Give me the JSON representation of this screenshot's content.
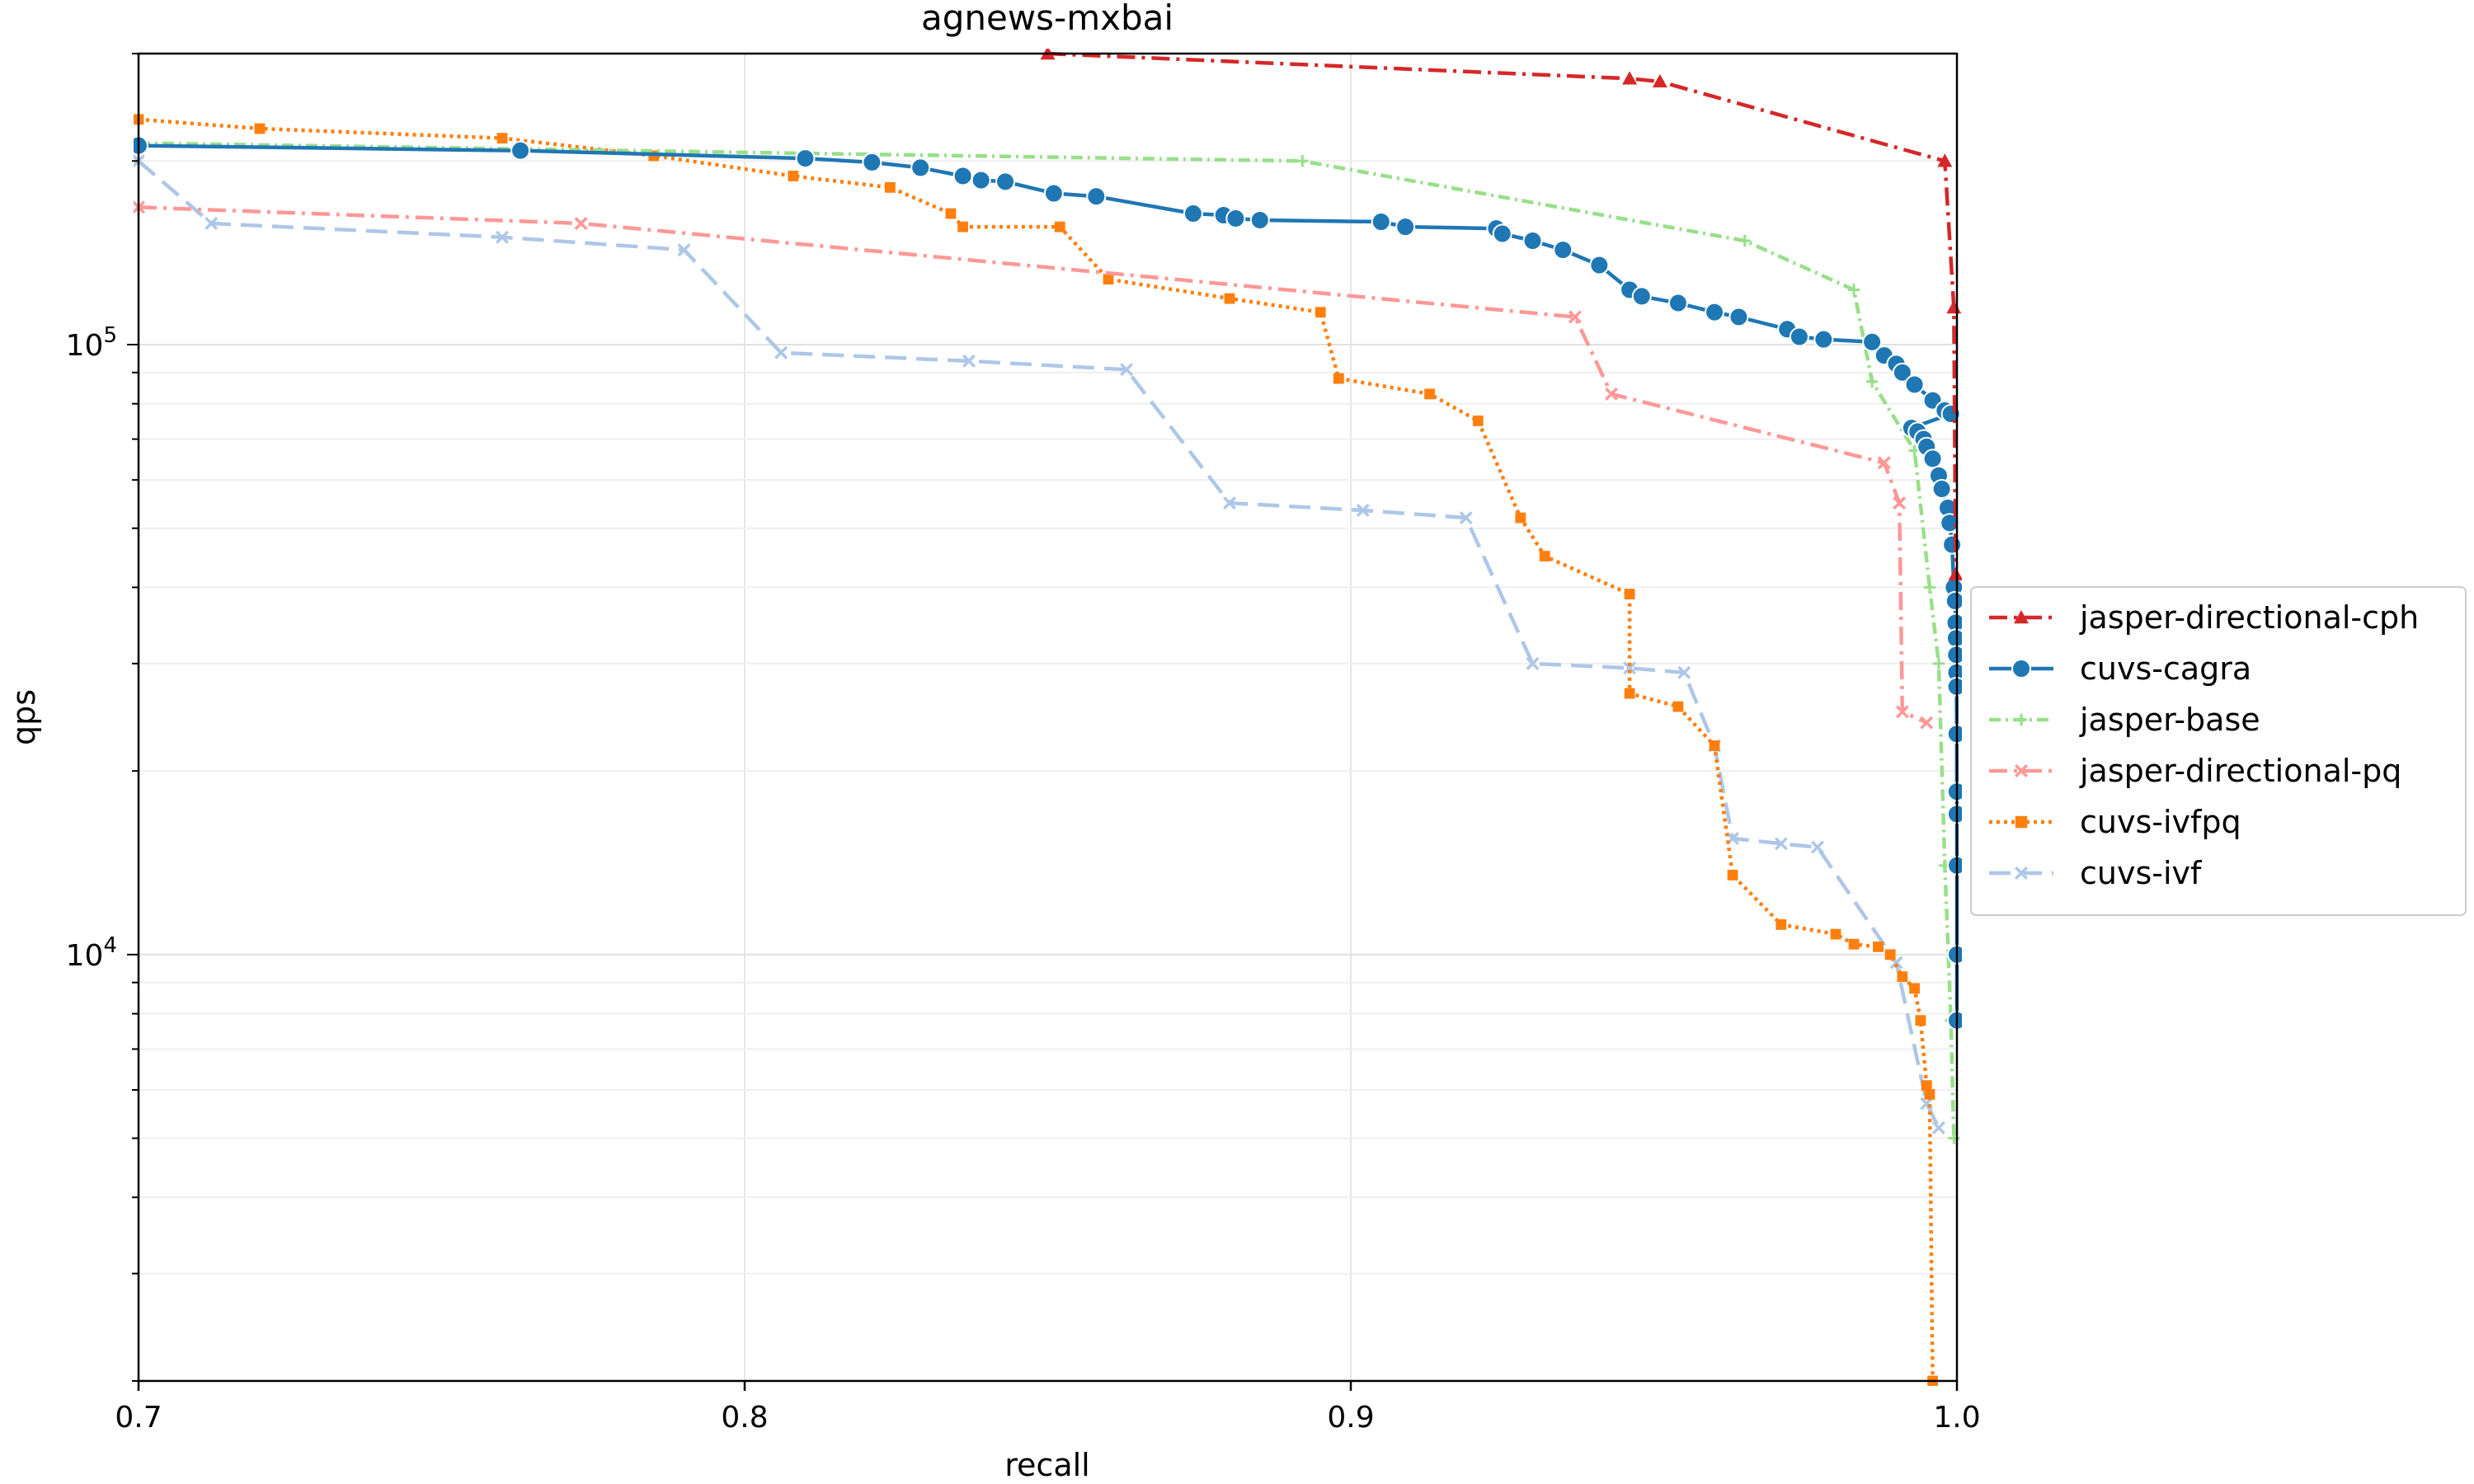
{
  "chart_data": {
    "type": "line",
    "title": "agnews-mxbai",
    "xlabel": "recall",
    "ylabel": "qps",
    "xlim": [
      0.7,
      1.0
    ],
    "ylim": [
      2000,
      300000
    ],
    "yscale": "log",
    "grid": true,
    "legend": "right",
    "x_ticks": [
      {
        "value": 0.7,
        "label": "0.7"
      },
      {
        "value": 0.8,
        "label": "0.8"
      },
      {
        "value": 0.9,
        "label": "0.9"
      },
      {
        "value": 1.0,
        "label": "1.0"
      }
    ],
    "y_ticks": [
      {
        "value": 10000,
        "base": "10",
        "exp": "4"
      },
      {
        "value": 100000,
        "base": "10",
        "exp": "5"
      }
    ],
    "series": [
      {
        "name": "jasper-directional-cph",
        "color": "#d62728",
        "dash": "22 8 4 8",
        "marker": "triangle",
        "points": [
          [
            0.85,
            300000
          ],
          [
            0.946,
            273000
          ],
          [
            0.951,
            270000
          ],
          [
            0.998,
            200000
          ],
          [
            0.9995,
            115000
          ],
          [
            0.9998,
            42000
          ]
        ]
      },
      {
        "name": "cuvs-cagra",
        "color": "#1f77b4",
        "dash": "",
        "marker": "circle",
        "points": [
          [
            0.7,
            212000
          ],
          [
            0.763,
            208000
          ],
          [
            0.81,
            202000
          ],
          [
            0.821,
            199000
          ],
          [
            0.829,
            195000
          ],
          [
            0.836,
            189000
          ],
          [
            0.839,
            186000
          ],
          [
            0.843,
            185000
          ],
          [
            0.851,
            177000
          ],
          [
            0.858,
            175000
          ],
          [
            0.874,
            164000
          ],
          [
            0.879,
            163000
          ],
          [
            0.881,
            161000
          ],
          [
            0.885,
            160000
          ],
          [
            0.905,
            159000
          ],
          [
            0.909,
            156000
          ],
          [
            0.924,
            155000
          ],
          [
            0.925,
            152000
          ],
          [
            0.93,
            148000
          ],
          [
            0.935,
            143000
          ],
          [
            0.941,
            135000
          ],
          [
            0.946,
            123000
          ],
          [
            0.948,
            120000
          ],
          [
            0.954,
            117000
          ],
          [
            0.96,
            113000
          ],
          [
            0.964,
            111000
          ],
          [
            0.972,
            106000
          ],
          [
            0.974,
            103000
          ],
          [
            0.978,
            102000
          ],
          [
            0.986,
            101000
          ],
          [
            0.988,
            96000
          ],
          [
            0.99,
            93000
          ],
          [
            0.991,
            90000
          ],
          [
            0.993,
            86000
          ],
          [
            0.996,
            81000
          ],
          [
            0.998,
            78000
          ],
          [
            0.999,
            77000
          ],
          [
            0.9925,
            73000
          ],
          [
            0.9935,
            72000
          ],
          [
            0.9945,
            70000
          ],
          [
            0.995,
            68000
          ],
          [
            0.996,
            65000
          ],
          [
            0.997,
            61000
          ],
          [
            0.9975,
            58000
          ],
          [
            0.9985,
            54000
          ],
          [
            0.9988,
            51000
          ],
          [
            0.9992,
            47000
          ],
          [
            0.9995,
            40000
          ],
          [
            0.9997,
            38000
          ],
          [
            0.9998,
            35000
          ],
          [
            0.99985,
            33000
          ],
          [
            0.9999,
            31000
          ],
          [
            0.99993,
            29000
          ],
          [
            0.99995,
            27500
          ],
          [
            0.99997,
            23000
          ],
          [
            0.99998,
            18500
          ],
          [
            0.99999,
            17000
          ],
          [
            1.0,
            14000
          ],
          [
            1.0,
            10000
          ],
          [
            1.0,
            7800
          ]
        ]
      },
      {
        "name": "jasper-base",
        "color": "#98df8a",
        "dash": "14 6 3 6",
        "marker": "plus",
        "points": [
          [
            0.7,
            214000
          ],
          [
            0.892,
            200000
          ],
          [
            0.965,
            148000
          ],
          [
            0.983,
            123000
          ],
          [
            0.986,
            87000
          ],
          [
            0.993,
            67000
          ],
          [
            0.9955,
            40000
          ],
          [
            0.997,
            30000
          ],
          [
            0.998,
            14000
          ],
          [
            0.999,
            7800
          ],
          [
            0.9995,
            5000
          ]
        ]
      },
      {
        "name": "jasper-directional-pq",
        "color": "#ff9896",
        "dash": "22 8 4 8",
        "marker": "x",
        "points": [
          [
            0.7,
            168000
          ],
          [
            0.773,
            158000
          ],
          [
            0.937,
            111000
          ],
          [
            0.943,
            83000
          ],
          [
            0.988,
            64000
          ],
          [
            0.9905,
            55000
          ],
          [
            0.991,
            25000
          ],
          [
            0.995,
            24000
          ]
        ]
      },
      {
        "name": "cuvs-ivfpq",
        "color": "#ff7f0e",
        "dash": "4 5",
        "marker": "square",
        "points": [
          [
            0.7,
            234000
          ],
          [
            0.72,
            226000
          ],
          [
            0.76,
            218000
          ],
          [
            0.785,
            204000
          ],
          [
            0.808,
            189000
          ],
          [
            0.824,
            181000
          ],
          [
            0.834,
            164000
          ],
          [
            0.836,
            156000
          ],
          [
            0.852,
            156000
          ],
          [
            0.86,
            128000
          ],
          [
            0.88,
            119000
          ],
          [
            0.895,
            113000
          ],
          [
            0.898,
            88000
          ],
          [
            0.913,
            83000
          ],
          [
            0.921,
            75000
          ],
          [
            0.928,
            52000
          ],
          [
            0.932,
            45000
          ],
          [
            0.946,
            39000
          ],
          [
            0.946,
            26800
          ],
          [
            0.954,
            25500
          ],
          [
            0.96,
            22000
          ],
          [
            0.963,
            13500
          ],
          [
            0.971,
            11200
          ],
          [
            0.98,
            10800
          ],
          [
            0.983,
            10400
          ],
          [
            0.987,
            10300
          ],
          [
            0.989,
            10000
          ],
          [
            0.991,
            9200
          ],
          [
            0.993,
            8800
          ],
          [
            0.994,
            7800
          ],
          [
            0.995,
            6100
          ],
          [
            0.9955,
            5900
          ],
          [
            0.996,
            2000
          ]
        ]
      },
      {
        "name": "cuvs-ivf",
        "color": "#aec7e8",
        "dash": "26 12",
        "marker": "x",
        "points": [
          [
            0.7,
            200000
          ],
          [
            0.712,
            158000
          ],
          [
            0.76,
            150000
          ],
          [
            0.79,
            143000
          ],
          [
            0.806,
            97000
          ],
          [
            0.837,
            94000
          ],
          [
            0.863,
            91000
          ],
          [
            0.88,
            55000
          ],
          [
            0.902,
            53500
          ],
          [
            0.919,
            52000
          ],
          [
            0.93,
            30000
          ],
          [
            0.946,
            29500
          ],
          [
            0.955,
            29000
          ],
          [
            0.96,
            22000
          ],
          [
            0.963,
            15500
          ],
          [
            0.971,
            15200
          ],
          [
            0.977,
            15000
          ],
          [
            0.99,
            9700
          ],
          [
            0.995,
            5700
          ],
          [
            0.997,
            5200
          ]
        ]
      }
    ]
  }
}
